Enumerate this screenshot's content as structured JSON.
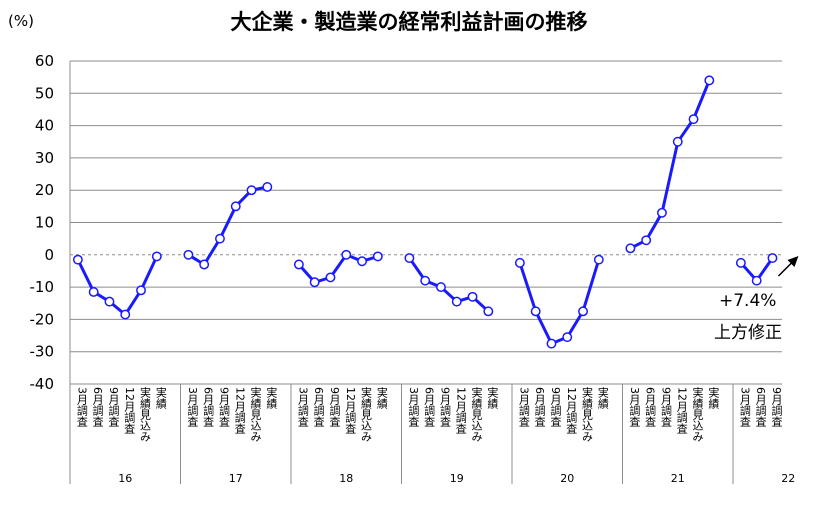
{
  "chart_data": {
    "type": "line",
    "title": "大企業・製造業の経常利益計画の推移",
    "y_unit": "(%)",
    "ylim": [
      -40,
      60
    ],
    "yticks": [
      60,
      50,
      40,
      30,
      20,
      10,
      0,
      -10,
      -20,
      -30,
      -40
    ],
    "grid": true,
    "line_color": "#1a1aff",
    "groups": [
      {
        "label": "16",
        "categories": [
          "3月調査",
          "6月調査",
          "9月調査",
          "12月調査",
          "実績見込み",
          "実績"
        ],
        "values": [
          -1.5,
          -11.5,
          -14.5,
          -18.5,
          -11,
          -0.5
        ]
      },
      {
        "label": "17",
        "categories": [
          "3月調査",
          "6月調査",
          "9月調査",
          "12月調査",
          "実績見込み",
          "実績"
        ],
        "values": [
          0,
          -3,
          5,
          15,
          20,
          21
        ]
      },
      {
        "label": "18",
        "categories": [
          "3月調査",
          "6月調査",
          "9月調査",
          "12月調査",
          "実績見込み",
          "実績"
        ],
        "values": [
          -3,
          -8.5,
          -7,
          0,
          -2,
          -0.5
        ]
      },
      {
        "label": "19",
        "categories": [
          "3月調査",
          "6月調査",
          "9月調査",
          "12月調査",
          "実績見込み",
          "実績"
        ],
        "values": [
          -1,
          -8,
          -10,
          -14.5,
          -13,
          -17.5
        ]
      },
      {
        "label": "20",
        "categories": [
          "3月調査",
          "6月調査",
          "9月調査",
          "12月調査",
          "実績見込み",
          "実績"
        ],
        "values": [
          -2.5,
          -17.5,
          -27.5,
          -25.5,
          -17.5,
          -1.5
        ]
      },
      {
        "label": "21",
        "categories": [
          "3月調査",
          "6月調査",
          "9月調査",
          "12月調査",
          "実績見込み",
          "実績"
        ],
        "values": [
          2,
          4.5,
          13,
          35,
          42,
          54
        ]
      },
      {
        "label": "22",
        "categories": [
          "3月調査",
          "6月調査",
          "9月調査"
        ],
        "values": [
          -2.5,
          -8,
          -1
        ]
      }
    ],
    "annotation": {
      "line1": "+7.4%",
      "line2": "上方修正"
    }
  }
}
